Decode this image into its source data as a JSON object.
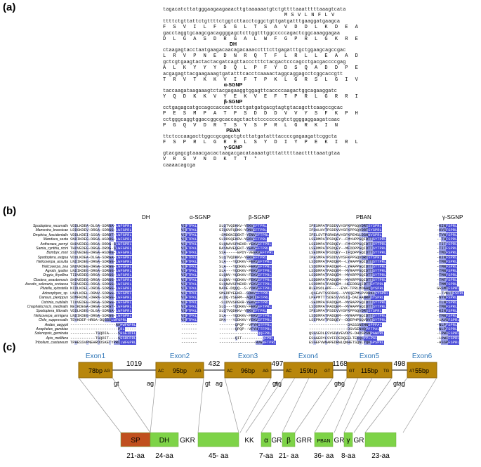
{
  "panel_labels": {
    "a": "(a)",
    "b": "(b)",
    "c": "(c)"
  },
  "panel_a": {
    "groups": [
      {
        "nt": "tagacatcttatgggaagaagaaacttgtaaaaaatgtctgttttaaatttttaaagtcata",
        "aa": "                                    M S V L N F L V"
      },
      {
        "nt": "ttttctgttattctgttttctggtcttacctcggctgttgatgatttgaaggatgaagca",
        "aa": "F  S  V  I  L  F  S  G  L  T  S  A  V  D  D  L  K  D  E  A"
      },
      {
        "nt": "gacctaggtgcaagcgacaggggagctcttggtttggcccccagactcggcaaaggagaa",
        "aa": "D  L  G  A  S  D  R  G  A  L  W  F  G  P  R  L  G  K  R  E",
        "label": "DH"
      },
      {
        "nt": "ctaagagtacctaatgaagacaacagacaaacctttcttgagatttgctggaagcagccgac",
        "aa": "L  R  V  P  N  E  D  N  R  Q  T  F  L  R  L  L  E  A  A  D"
      },
      {
        "nt": "gctcgtgaagtactactacgatcagttaccctttctacgactcccagcctgacgaccccgag",
        "aa": "A  L  K  Y  Y  Y  D  Q  L  P  F  Y  D  S  Q  A  D  D  P  E"
      },
      {
        "nt": "acgagagttacgaagaaagtgatatttcacctcaaaactaggcaggagcctcggcaccgtt",
        "aa": "T  R  V  T  K  K  V  I  F  T  P  K  L  G  R  S  L  G  I  V",
        "label": "α-SGNP"
      },
      {
        "nt": "taccaagataagaaagtctacgagaaggtggagttcaccccaagactggcagaaggatc",
        "aa": "Y  Q  D  K  K  V  Y  E  K  V  E  F  T  P  R  L  G  R  R  I",
        "label": "β-SGNP"
      },
      {
        "nt": "cctgagagcatgccagccaccacttcctgatgatgacgtagtgtacagcttcaagccgcac",
        "aa": "P  E  S  M  P  A  T  P  S  D  D  D  V  V  Y  S  F  K  P  H"
      },
      {
        "nt": "cctgggcaggtggaccggcgcaccagctactctcccccccgtctggggaggaagatcaac",
        "aa": "P  G  Q  V  D  R  T  S  Y  S  P  R  L  G  R  K  I  N",
        "label": "PBAN"
      },
      {
        "nt": "ttctcccaagacttggccgcgagctgtcttatgatatttaccccgagaagattcggcta",
        "aa": "F  S  P  R  L  G  R  E  L  S  Y  D  I  Y  P  E  K  I  R  L",
        "label": "γ-SGNP"
      },
      {
        "nt": "gtacgagcgtaaacgacactaagacgacataaaatgtttatttttaacttttaaatgtaa",
        "aa": "V  R  S  V  N  D  K  T  T  *"
      },
      {
        "nt": "caaaacagcga",
        "aa": ""
      }
    ]
  },
  "panel_b": {
    "headers": [
      "DH",
      "α-SGNP",
      "β-SGNP",
      "PBAN",
      "γ-SGNP"
    ],
    "species": [
      "Spodoptera_recurvalis",
      "Mamestra_brassicae",
      "Omphisa_fuscidentalis",
      "Manduca_sexta",
      "Antheraea_pernyi",
      "Samia_cynthia_ricini",
      "Bombyx_mori",
      "Spodoptera_exigua",
      "Helicoverpa_assulta",
      "Helicoverpa_zea",
      "Agrotis_ipsilon",
      "Orgyia_thyellina",
      "Clostera_anastomosis",
      "Ascotis_selenaria_cretacea",
      "Plutella_xylostella",
      "Adoxophyes_sp.",
      "Danaus_plexippus",
      "Ostrinia_nubilalis",
      "Cnaphalocrocis_medinalis",
      "Spodoptera_littoralis",
      "Helicoverpa_armigera",
      "Chilo_suppressalis",
      "Aedes_aegypti",
      "Anopheles_gambiae",
      "Solenopsis_geminata",
      "Apis_mellifera",
      "Tribolium_castaneum"
    ],
    "dh_rows": [
      "VDDLKDEA-DLGA-SDRGA-LWFGPRL",
      "LDDSKDEV-DRGA-SDRGG-LWFGPRL",
      "VDDLKDEI-SSGA-SDRDT-LWFGPRL",
      "SNDIKDEG-DRGA-HSDRG-LWFGPRL",
      "SHDVEDEG-DRGA-DRDG-SLWFGPRL",
      "THDVEDEG-DRGA-DRDG-SLWFGPRL",
      "SSDVEDEG-DRGA-HSDRG-LWFGPRL",
      "VDDLKDEA-DLGA-SDRGA-LWFGPRL",
      "LNDIKDEG-DRGA-SDRGG-LWFGPRL",
      "SNDVKDEG-DRGA-SDRGG-LWFGPRL",
      "LNDIKDEG-DRGA-SDRGG-LWFGPRL",
      "TIDVEDEG-DRGA-SDRGG-LWFGPRL",
      "SHDVEDEG-DRGA-SDRGG-LWFGPRL",
      "TGDVEDEG-DRGA-SDRGG-LWFGPRL",
      "NIDLKDEL-DRDA-SDRGG-LWFGPRL",
      "LNPLKDEL-DRNV-SDRGG-LWFGPRL",
      "SDMFKDNL-DRRA-SDRGG-LWFGPRL",
      "TIDVEDEG-DRGA-SDRGG-LWFGPRL",
      "NEIKDEGA-DRGA-SDRGT-LWFGPRL",
      "VDDLKDEG-DLGA-SDRGA-LWFGPRL",
      "LNDIKDEG-DRGA-SDRGG-LWFGPRL",
      "TDVKDEF-HRGA-DQSSSLWFGPRL",
      "--------------------AAMWFGPRL",
      "---------------------PRL-----",
      "-----------TSQDIA----SRSEIDFL",
      "-----------TSQDIT----SGSRFPRL",
      "TPHESSVPNEHRDDSKETYPRLLWFGPRL"
    ],
    "asgnp_rows": [
      "VIFTPKL",
      "VIFTPKL",
      "VIFTPKL",
      "VIFTPKL",
      "VIFTPKL",
      "VIFTPKL",
      "VIFTPKL",
      "VIFTPKL",
      "VIFTPKL",
      "VIFTPKL",
      "VIFTPKL",
      "VIFTPKL",
      "VIFTPKL",
      "VIFTPKL",
      "VIFTPKL",
      "VIFTPKL",
      "VIFTPKL",
      "VIFTPKL",
      "VIFTPKL",
      "VIFTPKL",
      "VIFTPKL",
      "VIFTPKL",
      "-------",
      "-------",
      "-------",
      "-------",
      "-------"
    ],
    "bsgnp_rows": [
      "SLQTVQDKKV-YEKVEFTPRL",
      "SIQGVFQDKK-YDNVEFTPRL",
      "-SMDGNIDEKT-YENVEFTPRL",
      "SLDDSQEKRV-YEKVEFTPRL",
      "SLQNAVSPNEKR-YEKVEFTPRL",
      "RASNAVEQEKT-YEKVEFTPRL",
      "SSA-----EPDY-VEEKVEFTPRL",
      "SLQTVQDKKV-YEKVEFTPRL",
      "SLA---YQDKKV-FEKVEFTPRL",
      "SLA---YQDKKV-FEKVEFTPRL",
      "SLA---YQDKKV-FEKVEFTPRL",
      "SLQNV-YQDKKV-FEKVEFTPRL",
      "SLQNV-YQDKKV-FEKVEFTPRL",
      "SLQNAVSPNEKR-YEKVEFTPRL",
      "NADE-DQQQ--S-YDKVEFTPRL",
      "SMEDPYEEKR--SDKVEFTPRL",
      "ALDQ-YSERM--AQKIDFTPRL",
      "-SIDVVSPEKR-YEKVEFTPRL",
      "SLQ---YQDKKV-FEKVEFTPRL",
      "SLQTVQDKKV-YEKVEFTPRL",
      "SLA---YQDKKV-FEKVEFTPRL",
      "SMA---YSDKKV-YEKVEFTPRL",
      "-------QPQP--VFYHSTFPRL",
      "-------QPQP--VFYHTTFPRL",
      "-----------------QQFPRL",
      "-------QIT---------QFPRL",
      "----------------HVWNFTPRL"
    ],
    "pban_rows": [
      "IPESMPATPSDDVVYSFKPPGQVDRTSYSPRL",
      "IPDALHVTPSDDVVYSFKPPGQVDRTSYSPRL",
      "IPELSVTPSRHDAVYSFKPEMSLDSHNVSPRL",
      "LSEDMPATPSDQEY--FMYHPPGQIDTTSYTPRL",
      "LSEDMPATPSDQEY--FMYDPPGQIDTTSYTPRL",
      "LSEDMPATPSDQEY--MFDDPPGQIDTTSYTPRL",
      "LSEDMPATPSDQEY--IFQDPPGQIDTTSYTPRL",
      "IPESMPATPSDDVVYSFKPPGQVDRTSYSPRL",
      "LSDDMPATPADQEM--LYRAPPGQIDTTSYTPRL",
      "LSDDMPATPADQEM--LYRAPPGQIDTTSYTPRL",
      "LSDDMPATPADQEM--MYRAPPGQIDTTSYTPRL",
      "LSDDMPATPADQEM--MYKRPPGQIDTTSYTPRL",
      "LSDDMPATPADQEM--MYKRPPGQIDTTSYTPRL",
      "LSDDMPATPADQEM--HEEDRGQIDTTSYTPRL",
      "RLEDSOLAPF----EYK-TPRLMDAAQQYSPRL",
      "-QSEAVTSSDRAS--VYKQEPMSPVDRKLSYSPRL",
      "LPEPMTTTSDESVVVSIQ-DAIAANRPSYSPRL",
      "-SEDMPATPADQEM--MYRAPPGQIDTTSYTPRL",
      "LSDDMPATPADQEM--MYRAPPGQIDTTSYTPRL",
      "IPESMPATPSDDVVYSFKPPGQVDRTSYSPRL",
      "LSDDMPATPADQEM--MYRAPPGQIDTTSYTPRL",
      "LSEPMAVTPSDQEY--DDEPHPGQVDVTSYTPRL",
      "-----------------DASSSNEHNSPPPAL",
      "-----------------DSVGENHQPPTPAL",
      "QSGSEDLFSYGDAYEVDPS-DHDSPSNPAWPRL",
      "ESGGEDYFSYFFPEDQEELTEKQLYPLPAL",
      "ESGEFVWNAPEDRWLQNHETSQNLYQKSPSPKL"
    ],
    "gsgnp_rows": [
      "-KINFSPRL",
      "-KVSFSPRL",
      "-TVNFSPRL",
      "--THFSPRL",
      "-TITFSPRL",
      "-TITFSPRL",
      "-TMSFSPRL",
      "-KINFSPRL",
      "-TMNFSPRL",
      "-TMNFSPRL",
      "-TMNFSPRL",
      "-TMNFSPRL",
      "-TMTFSPRL",
      "-TMMFSPRL",
      "GGSMTFSPRL",
      "--TVKLTFSPRL",
      "-NYNFSPRL",
      "-TLNFSPRL",
      "-TMNFSPRL",
      "-KINFSPRL",
      "-TMNFSPRL",
      "-SAVSFSPRL",
      "-NLPFSPRL",
      "-NLPFSPRL",
      "-LPWIFSPRL",
      "-LPWIFSPRL",
      "-HSSPFSPRL"
    ]
  },
  "panel_c": {
    "exons": [
      {
        "name": "Exon1",
        "size": "78bp",
        "left_label": "",
        "right_label": "AG"
      },
      {
        "name": "Exon2",
        "size": "95bp",
        "left_label": "AC",
        "right_label": "AG"
      },
      {
        "name": "Exon3",
        "size": "96bp",
        "left_label": "AC",
        "right_label": "AG"
      },
      {
        "name": "Exon4",
        "size": "159bp",
        "left_label": "AC",
        "right_label": "GT"
      },
      {
        "name": "Exon5",
        "size": "115bp",
        "left_label": "GT",
        "right_label": "TG"
      },
      {
        "name": "Exon6",
        "size": "55bp",
        "left_label": "AT",
        "right_label": ""
      }
    ],
    "introns": [
      {
        "size": "1019",
        "left": "gt",
        "right": "ag"
      },
      {
        "size": "432",
        "left": "gt",
        "right": "ag"
      },
      {
        "size": "497",
        "left": "gt",
        "right": "ag"
      },
      {
        "size": "1168",
        "left": "gt",
        "right": "ag"
      },
      {
        "size": "498",
        "left": "gt",
        "right": "ag"
      }
    ],
    "segments": [
      {
        "label": "SP",
        "length": "21-aa"
      },
      {
        "label": "DH",
        "length": "24-aa"
      },
      {
        "label": "GKR",
        "length": ""
      },
      {
        "label": "",
        "length": "45- aa"
      },
      {
        "label": "KK",
        "length": ""
      },
      {
        "label": "α",
        "length": "7-aa"
      },
      {
        "label": "GR",
        "length": ""
      },
      {
        "label": "β",
        "length": "21- aa"
      },
      {
        "label": "GRR",
        "length": ""
      },
      {
        "label": "PBAN",
        "length": "36- aa"
      },
      {
        "label": "GR",
        "length": ""
      },
      {
        "label": "γ",
        "length": "8-aa"
      },
      {
        "label": "GR",
        "length": ""
      },
      {
        "label": "",
        "length": "23-aa"
      }
    ],
    "colors": {
      "exon": "#b8860b",
      "exon_stroke": "#8b6508",
      "green": "#7ed348",
      "sp": "#c0501e",
      "exon_label": "#2e75b6",
      "line": "#999999"
    }
  }
}
